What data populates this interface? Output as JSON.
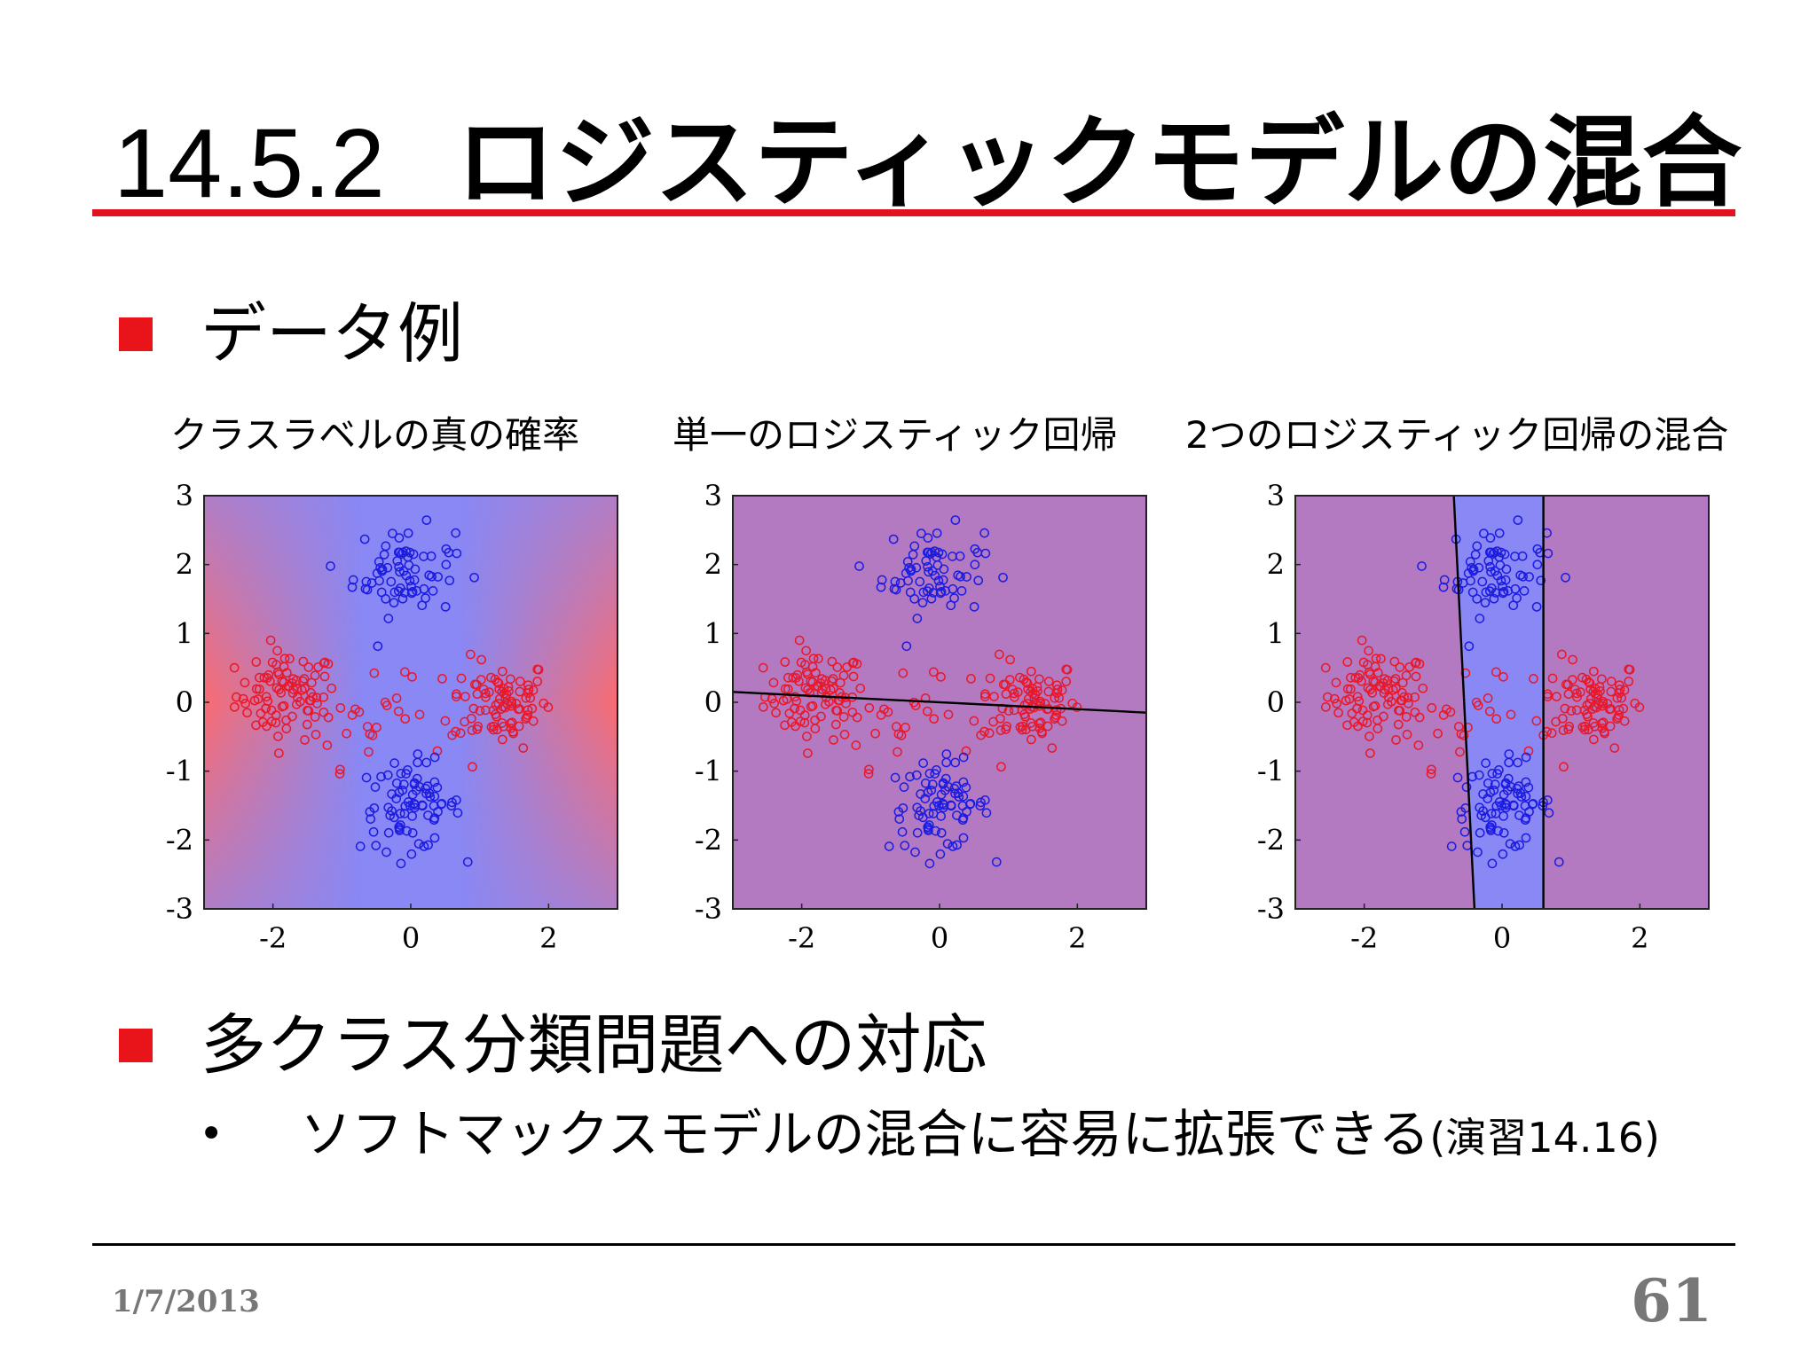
{
  "slide": {
    "section_number": "14.5.2",
    "title": "ロジスティックモデルの混合",
    "bullets": [
      {
        "text": "データ例"
      },
      {
        "text": "多クラス分類問題への対応"
      }
    ],
    "sub_bullet": {
      "text": "ソフトマックスモデルの混合に容易に拡張できる",
      "note": "(演習14.16)"
    },
    "footer": {
      "date": "1/7/2013",
      "page": "61"
    }
  },
  "colors": {
    "accent_red": "#e0141e",
    "bullet_red": "#e8141a",
    "class_red": "#e8182a",
    "class_blue": "#1c1ce0"
  },
  "chart_data": [
    {
      "type": "scatter",
      "title": "クラスラベルの真の確率",
      "xlim": [
        -3,
        3
      ],
      "ylim": [
        -3,
        3
      ],
      "xticks": [
        "-2",
        "0",
        "2"
      ],
      "yticks": [
        "3",
        "2",
        "1",
        "0",
        "-1",
        "-2",
        "-3"
      ],
      "background": "true class probability (red = red class, blue = blue class)",
      "series": [
        {
          "color": "red",
          "clusters": [
            {
              "center": [
                -1.8,
                0.1
              ],
              "n": 90
            },
            {
              "center": [
                1.3,
                0.0
              ],
              "n": 90
            },
            {
              "center": [
                -0.5,
                -0.3
              ],
              "n": 25
            }
          ]
        },
        {
          "color": "blue",
          "clusters": [
            {
              "center": [
                -0.1,
                1.9
              ],
              "n": 70
            },
            {
              "center": [
                0.0,
                -1.5
              ],
              "n": 80
            }
          ]
        }
      ],
      "boundaries": []
    },
    {
      "type": "scatter",
      "title": "単一のロジスティック回帰",
      "xlim": [
        -3,
        3
      ],
      "ylim": [
        -3,
        3
      ],
      "xticks": [
        "-2",
        "0",
        "2"
      ],
      "yticks": [
        "3",
        "2",
        "1",
        "0",
        "-1",
        "-2",
        "-3"
      ],
      "background": "uniform purple",
      "series": [
        {
          "color": "red",
          "clusters": [
            {
              "center": [
                -1.8,
                0.1
              ],
              "n": 90
            },
            {
              "center": [
                1.3,
                0.0
              ],
              "n": 90
            },
            {
              "center": [
                -0.5,
                -0.3
              ],
              "n": 25
            }
          ]
        },
        {
          "color": "blue",
          "clusters": [
            {
              "center": [
                -0.1,
                1.9
              ],
              "n": 70
            },
            {
              "center": [
                0.0,
                -1.5
              ],
              "n": 80
            }
          ]
        }
      ],
      "boundaries": [
        [
          [
            -3,
            0.15
          ],
          [
            3,
            -0.15
          ]
        ]
      ]
    },
    {
      "type": "scatter",
      "title": "2つのロジスティック回帰の混合",
      "xlim": [
        -3,
        3
      ],
      "ylim": [
        -3,
        3
      ],
      "xticks": [
        "-2",
        "0",
        "2"
      ],
      "yticks": [
        "3",
        "2",
        "1",
        "0",
        "-1",
        "-2",
        "-3"
      ],
      "background": "purple with blue vertical band",
      "series": [
        {
          "color": "red",
          "clusters": [
            {
              "center": [
                -1.8,
                0.1
              ],
              "n": 90
            },
            {
              "center": [
                1.3,
                0.0
              ],
              "n": 90
            },
            {
              "center": [
                -0.5,
                -0.3
              ],
              "n": 25
            }
          ]
        },
        {
          "color": "blue",
          "clusters": [
            {
              "center": [
                -0.1,
                1.9
              ],
              "n": 70
            },
            {
              "center": [
                0.0,
                -1.5
              ],
              "n": 80
            }
          ]
        }
      ],
      "boundaries": [
        [
          [
            -0.7,
            3
          ],
          [
            -0.4,
            -3
          ]
        ],
        [
          [
            0.6,
            3
          ],
          [
            0.6,
            -3
          ]
        ]
      ]
    }
  ]
}
